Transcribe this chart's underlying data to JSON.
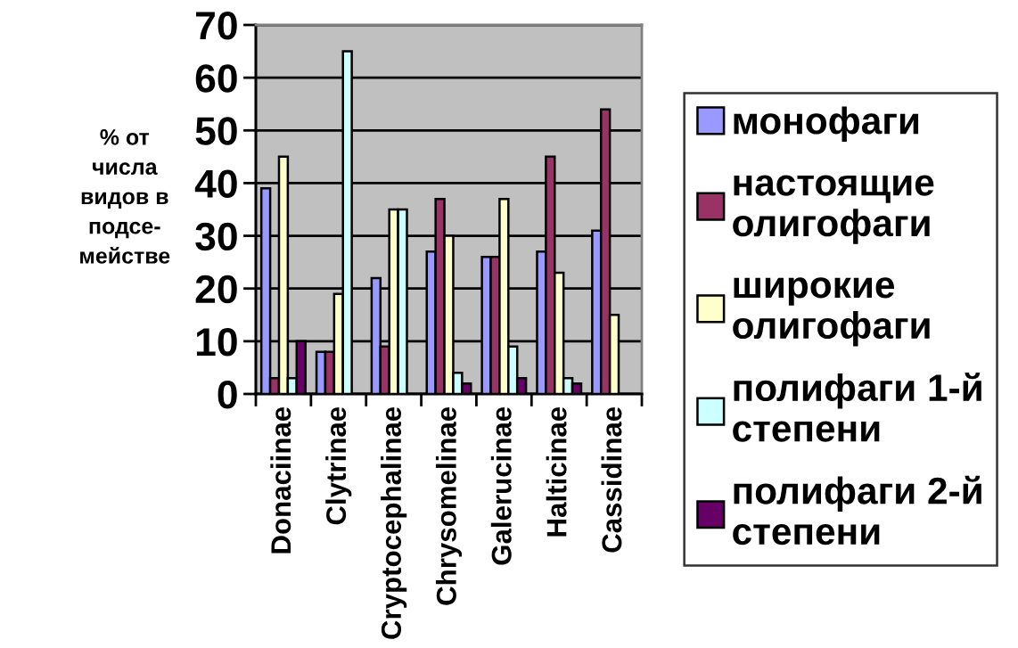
{
  "chart_data": {
    "type": "bar",
    "ylabel": "% от\nчисла\nвидов в\nподсе-\nмействе",
    "categories": [
      "Donaciinae",
      "Clytrinae",
      "Cryptocephalinae",
      "Chrysomelinae",
      "Galerucinae",
      "Halticinae",
      "Cassidinae"
    ],
    "series": [
      {
        "name": "монофаги",
        "color": "#9999ff",
        "values": [
          39,
          8,
          22,
          27,
          26,
          27,
          31
        ]
      },
      {
        "name": "настоящие\nолигофаги",
        "color": "#993366",
        "values": [
          3,
          8,
          9,
          37,
          26,
          45,
          54
        ]
      },
      {
        "name": "широкие\nолигофаги",
        "color": "#ffffcc",
        "values": [
          45,
          19,
          35,
          30,
          37,
          23,
          15
        ]
      },
      {
        "name": "полифаги 1-й\nстепени",
        "color": "#ccffff",
        "values": [
          3,
          65,
          35,
          4,
          9,
          3,
          null
        ]
      },
      {
        "name": "полифаги 2-й\nстепени",
        "color": "#660066",
        "values": [
          10,
          null,
          null,
          2,
          3,
          2,
          null
        ]
      }
    ],
    "ylim": [
      0,
      70
    ],
    "yticks": [
      0,
      10,
      20,
      30,
      40,
      50,
      60,
      70
    ],
    "grid": "y",
    "legend": "right"
  }
}
